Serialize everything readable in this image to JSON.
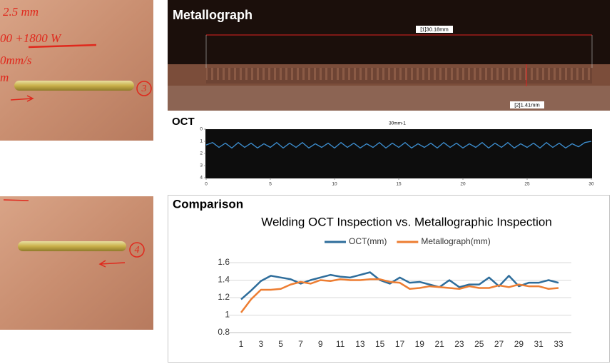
{
  "photos": [
    {
      "notes": [
        "2.5 mm",
        "00 +1800 W",
        "0mm/s",
        "m"
      ],
      "number": "3"
    },
    {
      "number": "4"
    }
  ],
  "metallograph": {
    "title": "Metallograph",
    "length_label": "[1]30.18mm",
    "depth_label": "[2]1.41mm"
  },
  "oct_panel": {
    "label": "OCT"
  },
  "comparison_panel": {
    "label": "Comparison"
  },
  "chart_data": [
    {
      "type": "line",
      "title": "30mm-1",
      "color": "#3d8fd1",
      "y_inverted": true,
      "x": [
        0,
        0.5,
        1,
        1.5,
        2,
        2.5,
        3,
        3.5,
        4,
        4.5,
        5,
        5.5,
        6,
        6.5,
        7,
        7.5,
        8,
        8.5,
        9,
        9.5,
        10,
        10.5,
        11,
        11.5,
        12,
        12.5,
        13,
        13.5,
        14,
        14.5,
        15,
        15.5,
        16,
        16.5,
        17,
        17.5,
        18,
        18.5,
        19,
        19.5,
        20,
        20.5,
        21,
        21.5,
        22,
        22.5,
        23,
        23.5,
        24,
        24.5,
        25,
        25.5,
        26,
        26.5,
        27,
        27.5,
        28,
        28.5,
        29,
        29.5,
        30
      ],
      "values": [
        1.3,
        1.1,
        1.5,
        1.15,
        1.55,
        1.1,
        1.5,
        1.15,
        1.55,
        1.2,
        1.5,
        1.1,
        1.55,
        1.15,
        1.5,
        1.1,
        1.55,
        1.2,
        1.5,
        1.15,
        1.55,
        1.1,
        1.5,
        1.15,
        1.55,
        1.2,
        1.5,
        1.1,
        1.55,
        1.15,
        1.5,
        1.1,
        1.55,
        1.2,
        1.5,
        1.15,
        1.55,
        1.1,
        1.5,
        1.15,
        1.55,
        1.2,
        1.5,
        1.1,
        1.55,
        1.15,
        1.5,
        1.1,
        1.55,
        1.2,
        1.5,
        1.15,
        1.55,
        1.1,
        1.5,
        1.15,
        1.55,
        1.2,
        1.45,
        1.1,
        1.0
      ],
      "xlim": [
        0,
        30
      ],
      "xticks": [
        0,
        5,
        10,
        15,
        20,
        25,
        30
      ],
      "ylim": [
        0,
        4
      ],
      "yticks": [
        0,
        1,
        2,
        3,
        4
      ]
    },
    {
      "type": "line",
      "title": "Welding OCT Inspection vs. Metallographic Inspection",
      "legend": "top",
      "grid": true,
      "categories": [
        1,
        null,
        3,
        null,
        5,
        null,
        7,
        null,
        9,
        null,
        11,
        null,
        13,
        null,
        15,
        null,
        17,
        null,
        19,
        null,
        21,
        null,
        23,
        null,
        25,
        null,
        27,
        null,
        29,
        null,
        31,
        null,
        33
      ],
      "series": [
        {
          "name": "OCT(mm)",
          "color": "#2e6d9b",
          "values": [
            1.18,
            1.28,
            1.39,
            1.45,
            1.43,
            1.41,
            1.36,
            1.4,
            1.43,
            1.46,
            1.44,
            1.43,
            1.46,
            1.49,
            1.4,
            1.36,
            1.43,
            1.37,
            1.38,
            1.35,
            1.32,
            1.4,
            1.32,
            1.35,
            1.35,
            1.43,
            1.33,
            1.45,
            1.33,
            1.37,
            1.37,
            1.4,
            1.37
          ]
        },
        {
          "name": "Metallograph(mm)",
          "color": "#ed7d31",
          "values": [
            1.03,
            1.18,
            1.29,
            1.29,
            1.3,
            1.35,
            1.38,
            1.36,
            1.4,
            1.39,
            1.41,
            1.4,
            1.4,
            1.41,
            1.41,
            1.38,
            1.37,
            1.3,
            1.31,
            1.33,
            1.32,
            1.31,
            1.3,
            1.33,
            1.31,
            1.31,
            1.34,
            1.32,
            1.35,
            1.33,
            1.33,
            1.3,
            1.31
          ]
        }
      ],
      "ylim": [
        0.8,
        1.6
      ],
      "yticks": [
        0.8,
        1,
        1.2,
        1.4,
        1.6
      ]
    }
  ]
}
